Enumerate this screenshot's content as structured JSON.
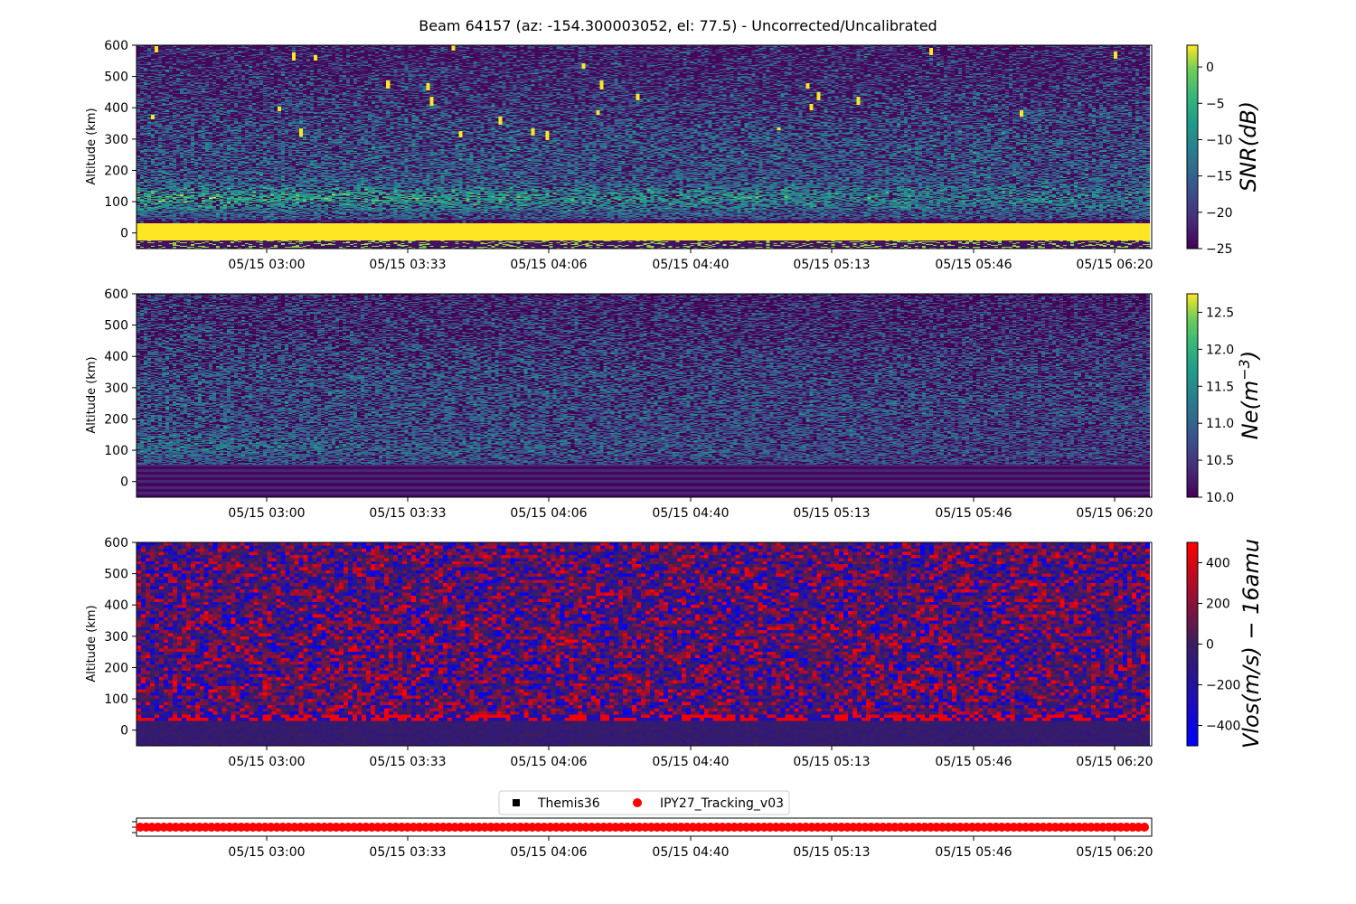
{
  "title": "Beam 64157 (az: -154.300003052, el: 77.5) - Uncorrected/Uncalibrated",
  "time_ticks": [
    "05/15 03:00",
    "05/15 03:33",
    "05/15 04:06",
    "05/15 04:40",
    "05/15 05:13",
    "05/15 05:46",
    "05/15 06:20"
  ],
  "altitude_ticks": [
    0,
    100,
    200,
    300,
    400,
    500,
    600
  ],
  "colors": {
    "viridis_low": "#440154",
    "viridis_mid": "#21918c",
    "viridis_high": "#fde725",
    "bwr_low": "#0000ff",
    "bwr_high": "#ff0000",
    "marker_red": "#ff0000"
  },
  "chart_data": [
    {
      "type": "heatmap",
      "name": "snr",
      "ylabel": "Altitude (km)",
      "ylim": [
        -50,
        600
      ],
      "colorbar_label": "SNR(dB)",
      "clim": [
        -25,
        3
      ],
      "colorbar_ticks": [
        "0",
        "−5",
        "−10",
        "−15",
        "−20",
        "−25"
      ],
      "colorbar_tick_values": [
        0,
        -5,
        -10,
        -15,
        -20,
        -25
      ],
      "colormap": "viridis"
    },
    {
      "type": "heatmap",
      "name": "ne",
      "ylabel": "Altitude (km)",
      "ylim": [
        -50,
        600
      ],
      "colorbar_label": "Ne(m^-3)",
      "colorbar_label_base": "Ne(m",
      "colorbar_label_exp": "−3",
      "colorbar_label_close": ")",
      "clim": [
        10.0,
        12.75
      ],
      "colorbar_ticks": [
        "12.5",
        "12.0",
        "11.5",
        "11.0",
        "10.5",
        "10.0"
      ],
      "colorbar_tick_values": [
        12.5,
        12.0,
        11.5,
        11.0,
        10.5,
        10.0
      ],
      "colormap": "viridis"
    },
    {
      "type": "heatmap",
      "name": "vlos",
      "ylabel": "Altitude (km)",
      "ylim": [
        -50,
        600
      ],
      "colorbar_label": "Vlos(m/s) − 16amu",
      "clim": [
        -500,
        500
      ],
      "colorbar_ticks": [
        "400",
        "200",
        "0",
        "−200",
        "−400"
      ],
      "colorbar_tick_values": [
        400,
        200,
        0,
        -200,
        -400
      ],
      "colormap": "blue-red"
    },
    {
      "type": "scatter",
      "name": "tracking",
      "legend": [
        {
          "label": "Themis36",
          "marker": "square",
          "color": "#000000"
        },
        {
          "label": "IPY27_Tracking_v03",
          "marker": "circle",
          "color": "#ff0000"
        }
      ],
      "legend_placement": "top-center",
      "points": 170
    }
  ]
}
